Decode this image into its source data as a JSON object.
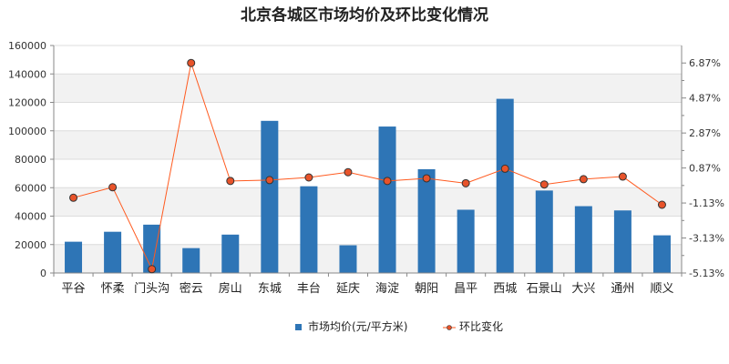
{
  "chart_data": {
    "type": "bar+line",
    "title": "北京各城区市场均价及环比变化情况",
    "categories": [
      "平谷",
      "怀柔",
      "门头沟",
      "密云",
      "房山",
      "东城",
      "丰台",
      "延庆",
      "海淀",
      "朝阳",
      "昌平",
      "西城",
      "石景山",
      "大兴",
      "通州",
      "顺义"
    ],
    "series": [
      {
        "name": "市场均价(元/平方米)",
        "type": "bar",
        "axis": "left",
        "color": "#2e75b6",
        "values": [
          22000,
          29000,
          34000,
          17500,
          27000,
          107000,
          61000,
          19500,
          103000,
          73000,
          44500,
          122500,
          58000,
          47000,
          44000,
          26500
        ]
      },
      {
        "name": "环比变化",
        "type": "line",
        "axis": "right",
        "color": "#ff5a1f",
        "marker_fill": "#e8532a",
        "values": [
          -0.83,
          -0.23,
          -4.91,
          6.87,
          0.13,
          0.18,
          0.33,
          0.63,
          0.13,
          0.28,
          0.0,
          0.83,
          -0.07,
          0.23,
          0.38,
          -1.23
        ]
      }
    ],
    "y_left": {
      "min": 0,
      "max": 160000,
      "ticks": [
        0,
        20000,
        40000,
        60000,
        80000,
        100000,
        120000,
        140000,
        160000
      ],
      "tick_labels": [
        "0",
        "20000",
        "40000",
        "60000",
        "80000",
        "100000",
        "120000",
        "140000",
        "160000"
      ]
    },
    "y_right": {
      "min": -5.13,
      "max": 7.87,
      "ticks": [
        -5.13,
        -3.13,
        -1.13,
        0.87,
        2.87,
        4.87,
        6.87
      ],
      "tick_labels": [
        "-5.13%",
        "-3.13%",
        "-1.13%",
        "0.87%",
        "2.87%",
        "4.87%",
        "6.87%"
      ]
    },
    "legend": {
      "position": "bottom",
      "items": [
        "市场均价(元/平方米)",
        "环比变化"
      ]
    },
    "grid": true
  }
}
